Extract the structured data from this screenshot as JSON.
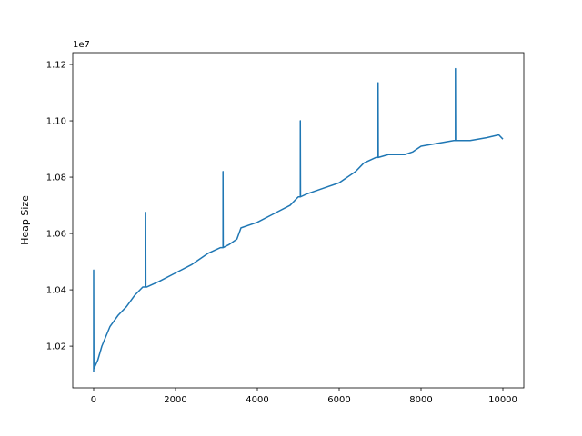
{
  "chart_data": {
    "type": "line",
    "y_label": "Heap Size",
    "y_offset_label": "1e7",
    "color": "#1f77b4",
    "x": [
      0,
      0,
      5,
      100,
      200,
      400,
      600,
      800,
      1000,
      1200,
      1270,
      1270,
      1275,
      1300,
      1600,
      2000,
      2400,
      2800,
      3100,
      3160,
      3160,
      3165,
      3300,
      3500,
      3600,
      4000,
      4400,
      4800,
      5000,
      5050,
      5050,
      5055,
      5200,
      5600,
      6000,
      6400,
      6600,
      6900,
      6950,
      6950,
      6955,
      7200,
      7600,
      7800,
      8000,
      8400,
      8800,
      8840,
      8840,
      8845,
      9200,
      9600,
      9900,
      10000
    ],
    "values": [
      1.011,
      1.047,
      1.012,
      1.015,
      1.02,
      1.027,
      1.031,
      1.034,
      1.038,
      1.041,
      1.041,
      1.0675,
      1.041,
      1.041,
      1.043,
      1.046,
      1.049,
      1.053,
      1.055,
      1.055,
      1.082,
      1.055,
      1.056,
      1.058,
      1.062,
      1.064,
      1.067,
      1.07,
      1.073,
      1.073,
      1.1,
      1.073,
      1.074,
      1.076,
      1.078,
      1.082,
      1.085,
      1.087,
      1.087,
      1.1135,
      1.087,
      1.088,
      1.088,
      1.089,
      1.091,
      1.092,
      1.093,
      1.093,
      1.1185,
      1.093,
      1.093,
      1.094,
      1.095,
      1.0935
    ],
    "xlim": [
      -511,
      10511
    ],
    "ylim": [
      1.0052,
      1.1242
    ],
    "xticks": [
      0,
      2000,
      4000,
      6000,
      8000,
      10000
    ],
    "yticks": [
      1.02,
      1.04,
      1.06,
      1.08,
      {
        "value": 1.1,
        "label": "1.10"
      },
      1.12
    ]
  }
}
